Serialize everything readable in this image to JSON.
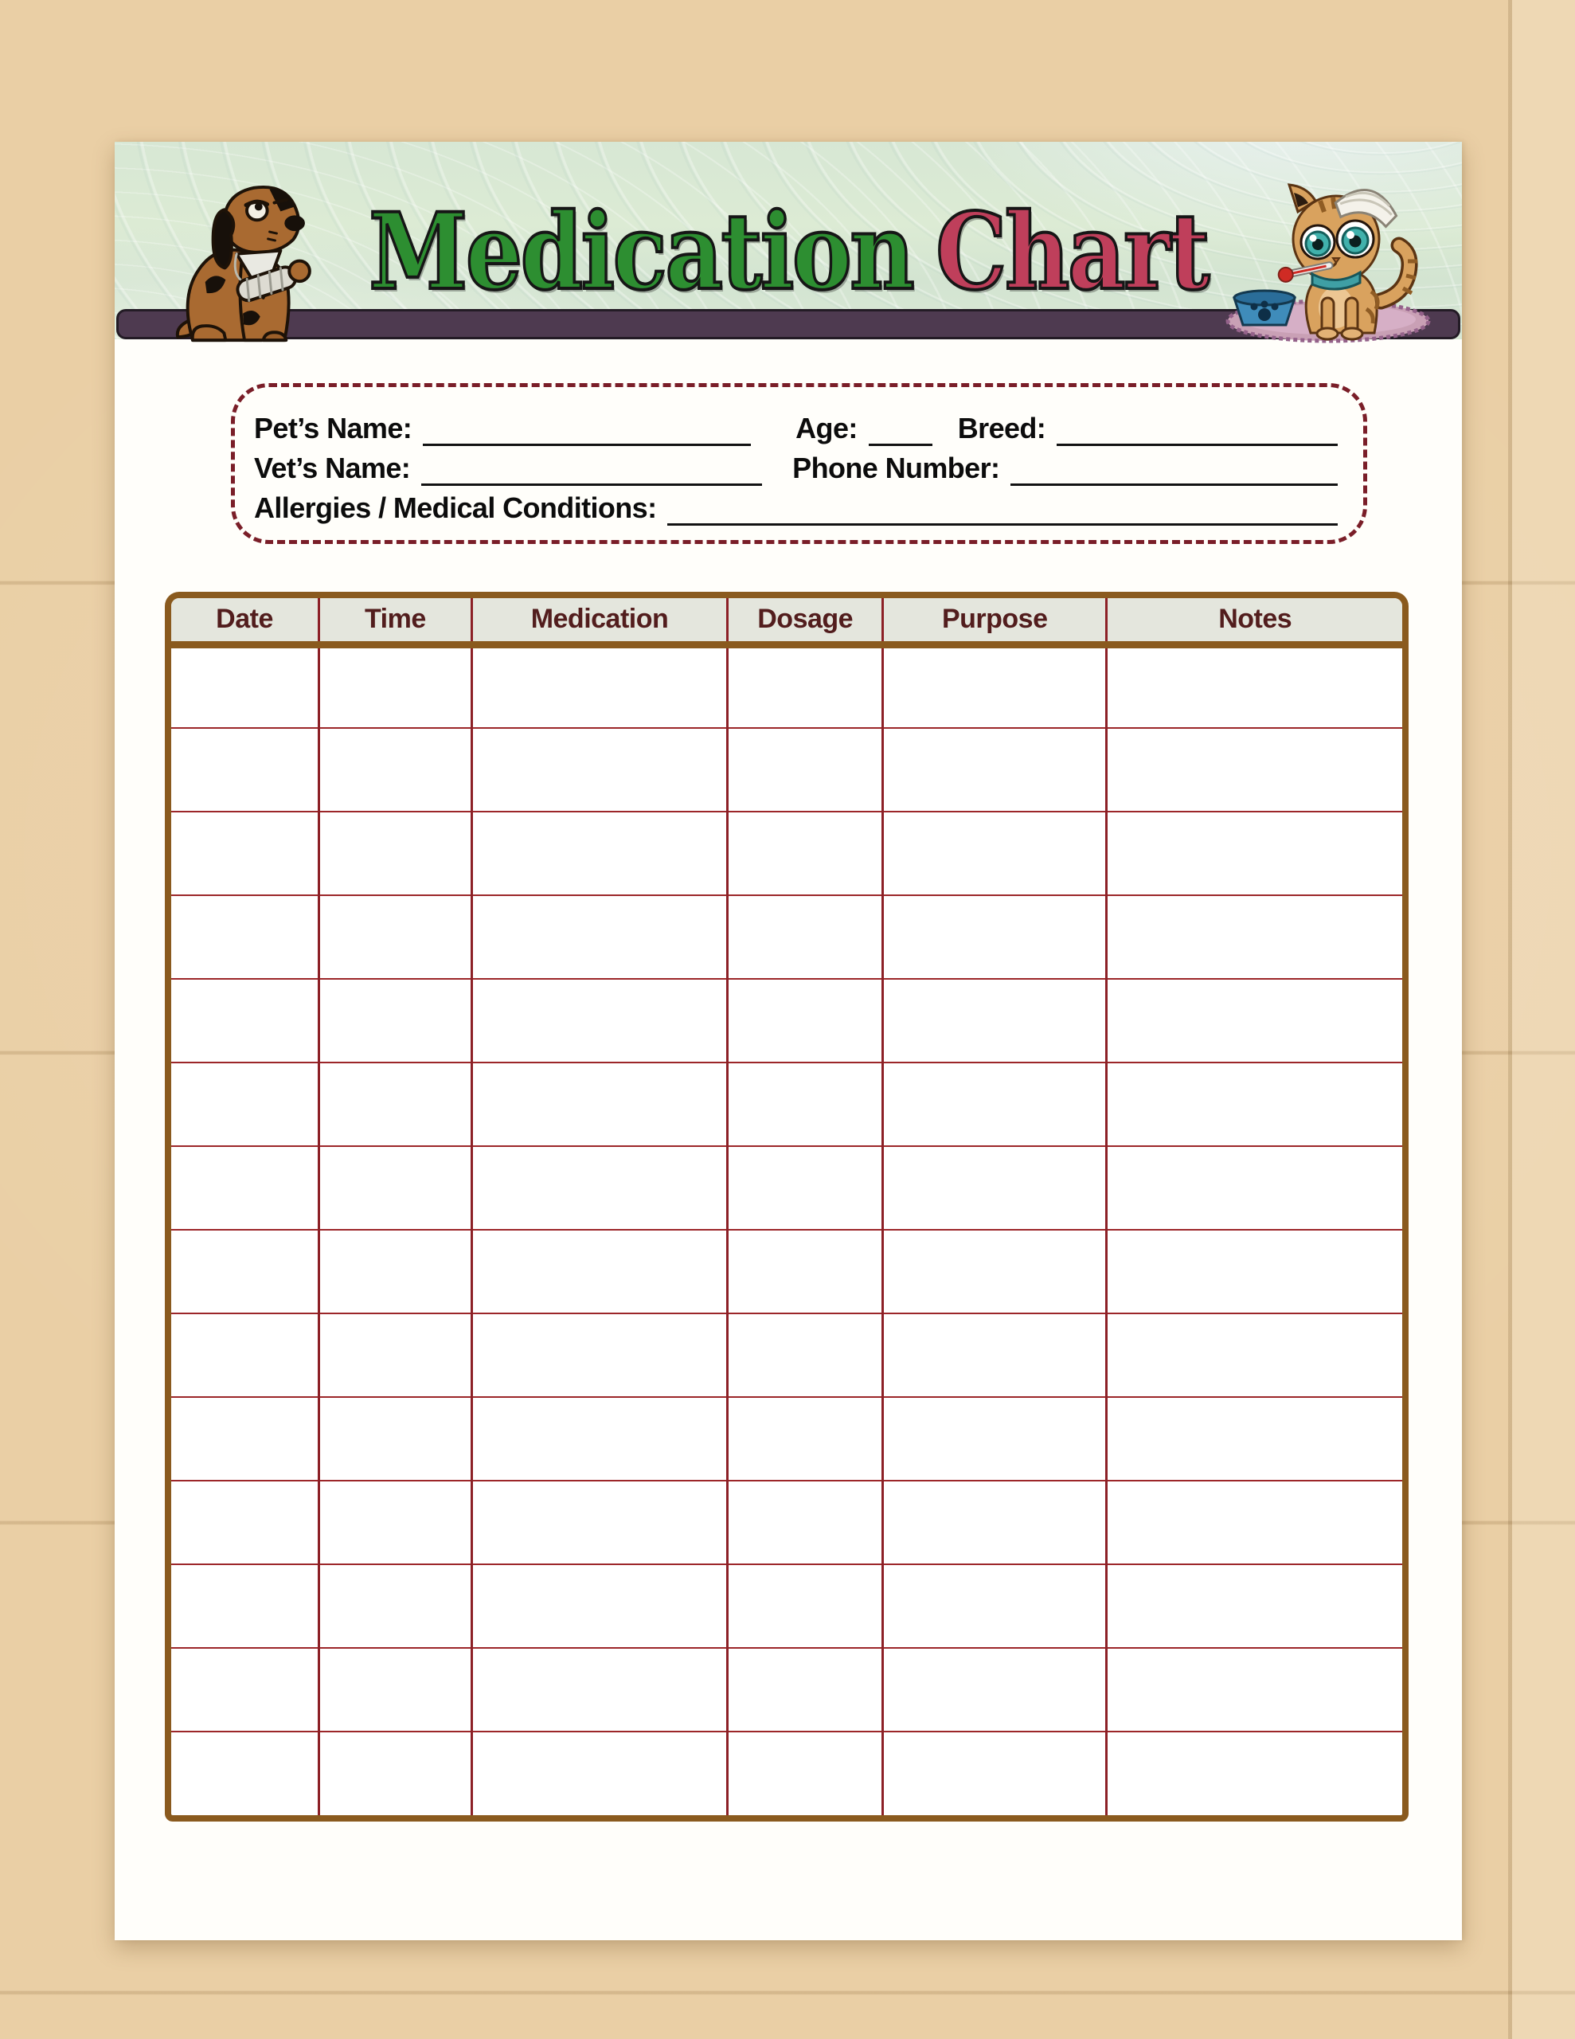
{
  "header": {
    "title_word1": "Medication",
    "title_word2": "Chart"
  },
  "info_box": {
    "pet_name_label": "Pet’s Name:",
    "age_label": "Age:",
    "breed_label": "Breed:",
    "vet_name_label": "Vet’s Name:",
    "phone_number_label": "Phone Number:",
    "allergies_label": "Allergies / Medical Conditions:"
  },
  "medication_table": {
    "columns": [
      "Date",
      "Time",
      "Medication",
      "Dosage",
      "Purpose",
      "Notes"
    ],
    "row_count": 14
  },
  "illustrations": {
    "left": "injured-dog-with-bandaged-front-leg",
    "right": "injured-kitten-with-head-bandage-thermometer-rug-and-food-bowl"
  },
  "colors": {
    "paper_tan": "#e9cca0",
    "banner_green": "#d9e8d4",
    "banner_bar_purple": "#4e3a50",
    "title_green": "#2d8e31",
    "title_pink": "#bf3f5b",
    "dashed_border_maroon": "#7a1e28",
    "table_border_brown": "#8a5a1e",
    "grid_line_red": "#9c2629",
    "header_row_bg": "#e4e6dd",
    "header_text_maroon": "#521d1d"
  }
}
